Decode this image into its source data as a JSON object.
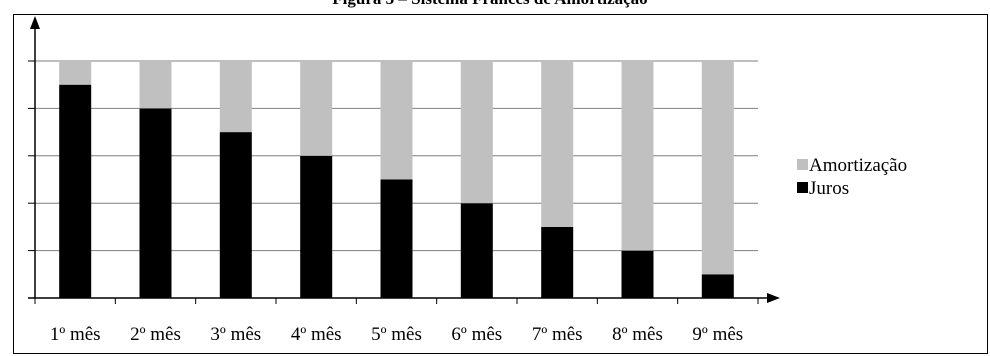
{
  "chart_data": {
    "type": "bar",
    "stacked": true,
    "normalized": true,
    "title": "Figura 3 – Sistema Francês de Amortização",
    "categories": [
      "1º mês",
      "2º mês",
      "3º mês",
      "4º mês",
      "5º mês",
      "6º mês",
      "7º mês",
      "8º mês",
      "9º mês"
    ],
    "series": [
      {
        "name": "Juros",
        "color": "#000000",
        "values": [
          0.9,
          0.8,
          0.7,
          0.6,
          0.5,
          0.4,
          0.3,
          0.2,
          0.1
        ]
      },
      {
        "name": "Amortização",
        "color": "#c0c0c0",
        "values": [
          0.1,
          0.2,
          0.3,
          0.4,
          0.5,
          0.6,
          0.7,
          0.8,
          0.9
        ]
      }
    ],
    "ylim": [
      0,
      1
    ],
    "y_gridlines": [
      0.2,
      0.4,
      0.6,
      0.8,
      1.0
    ],
    "y_tick_labels_visible": false,
    "grid": true,
    "legend_position": "right",
    "legend_order": [
      "Amortização",
      "Juros"
    ],
    "xlabel": "",
    "ylabel": ""
  }
}
